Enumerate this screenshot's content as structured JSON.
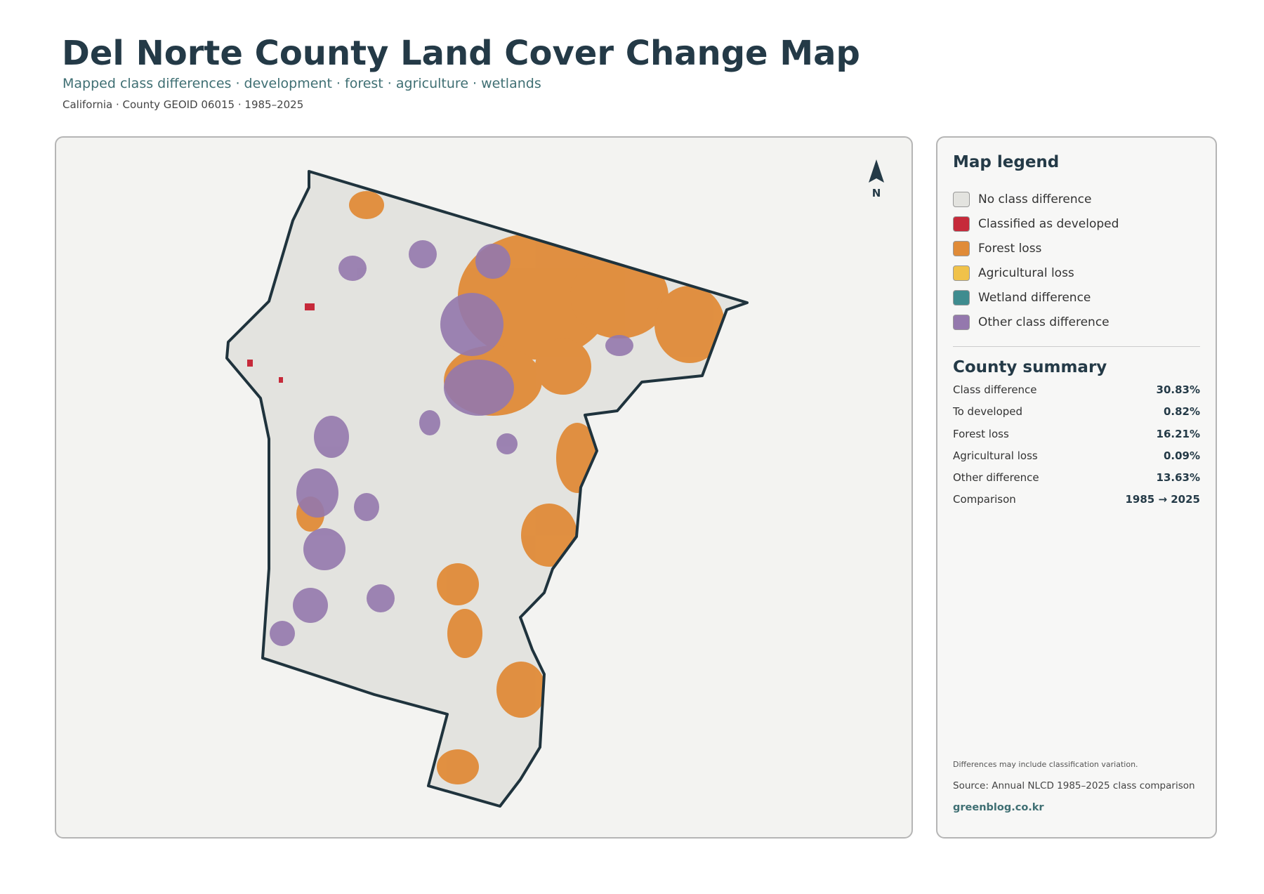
{
  "header": {
    "title": "Del Norte County Land Cover Change Map",
    "subtitle": "Mapped class differences · development · forest · agriculture · wetlands",
    "caption": "California · County GEOID 06015 · 1985–2025"
  },
  "map": {
    "north_label": "N"
  },
  "legend": {
    "title": "Map legend",
    "items": [
      {
        "label": "No class difference",
        "color": "#e3e3df"
      },
      {
        "label": "Classified as developed",
        "color": "#c62a3a"
      },
      {
        "label": "Forest loss",
        "color": "#e08b38"
      },
      {
        "label": "Agricultural loss",
        "color": "#f0c24a"
      },
      {
        "label": "Wetland difference",
        "color": "#3f8c8f"
      },
      {
        "label": "Other class difference",
        "color": "#9478ad"
      }
    ]
  },
  "summary": {
    "title": "County summary",
    "rows": [
      [
        "Class difference",
        "30.83%"
      ],
      [
        "To developed",
        "0.82%"
      ],
      [
        "Forest loss",
        "16.21%"
      ],
      [
        "Agricultural loss",
        "0.09%"
      ],
      [
        "Other difference",
        "13.63%"
      ],
      [
        "Comparison",
        "1985 → 2025"
      ]
    ]
  },
  "footer": {
    "note": "Differences may include classification variation.",
    "source": "Source: Annual NLCD 1985–2025 class comparison",
    "site": "greenblog.co.kr"
  }
}
